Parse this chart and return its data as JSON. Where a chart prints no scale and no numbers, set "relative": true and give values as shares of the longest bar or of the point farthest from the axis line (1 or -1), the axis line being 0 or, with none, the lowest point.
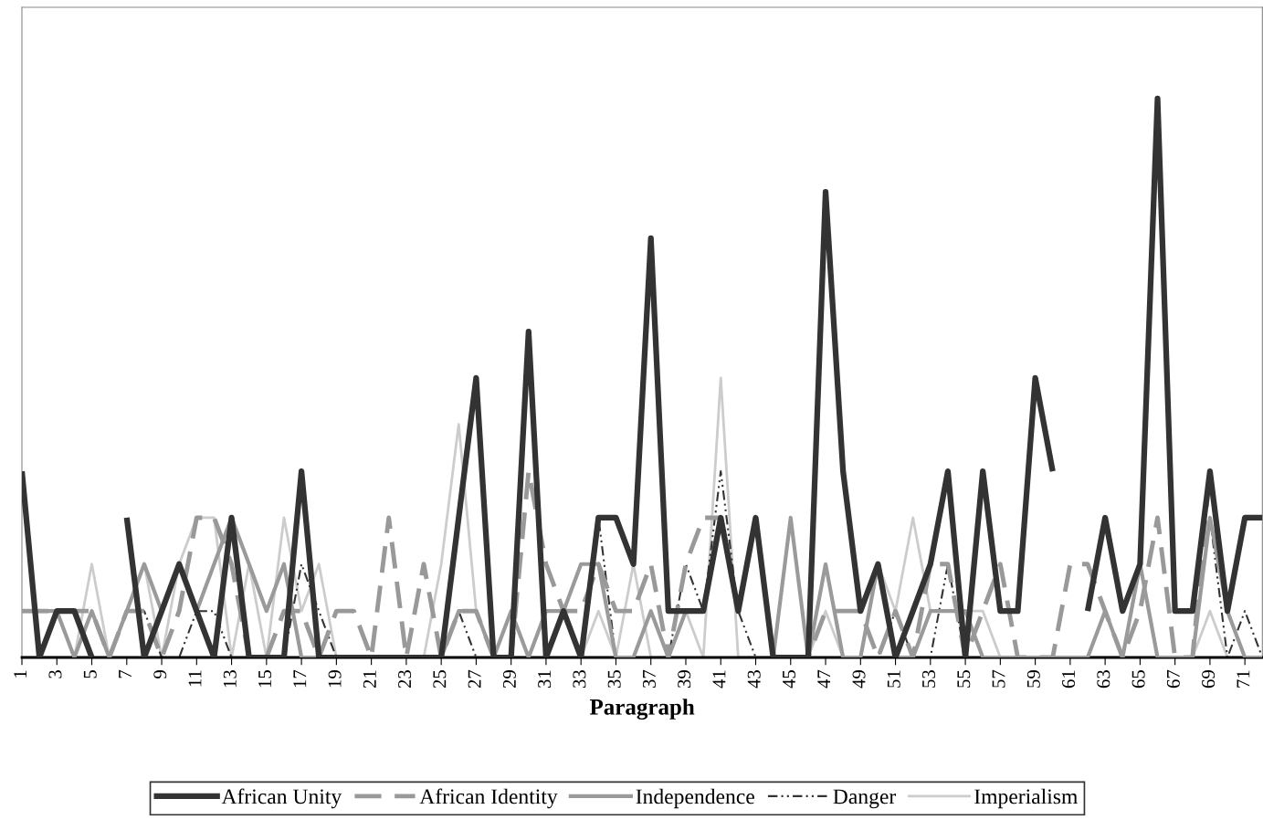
{
  "chart_data": {
    "type": "line",
    "relative": true,
    "xlabel": "Paragraph",
    "categories": [
      "1",
      null,
      "3",
      null,
      "5",
      null,
      "7",
      null,
      "9",
      null,
      "11",
      null,
      "13",
      null,
      "15",
      null,
      "17",
      null,
      "19",
      null,
      "21",
      null,
      "23",
      null,
      "25",
      null,
      "27",
      null,
      "29",
      null,
      "31",
      null,
      "33",
      null,
      "35",
      null,
      "37",
      null,
      "39",
      null,
      "41",
      null,
      "43",
      null,
      "45",
      null,
      "47",
      null,
      "49",
      null,
      "51",
      null,
      "53",
      null,
      "55",
      null,
      "57",
      null,
      "59",
      null,
      "61",
      null,
      "63",
      null,
      "65",
      null,
      "67",
      null,
      "69",
      null,
      "71",
      null
    ],
    "series": [
      {
        "name": "African Unity",
        "color": "#333333",
        "line_style": "solid",
        "values": [
          0.333,
          0,
          0.083,
          0.083,
          0,
          null,
          0.25,
          0,
          0.083,
          0.167,
          0.083,
          0,
          0.25,
          0,
          0,
          0,
          0.333,
          0,
          0,
          0,
          0,
          0,
          0,
          0,
          0,
          0.25,
          0.5,
          0,
          0,
          0.583,
          0,
          0.083,
          0,
          0.25,
          0.25,
          0.167,
          0.75,
          0.083,
          0.083,
          0.083,
          0.25,
          0.083,
          0.25,
          0,
          0,
          0,
          0.833,
          0.333,
          0.083,
          0.167,
          0,
          0.083,
          0.167,
          0.333,
          0,
          0.333,
          0.083,
          0.083,
          0.5,
          0.333,
          null,
          0.083,
          0.25,
          0.083,
          0.167,
          1,
          0.083,
          0.083,
          0.333,
          0.083,
          0.25,
          0.25
        ]
      },
      {
        "name": "African Identity",
        "color": "#999999",
        "line_style": "dashed",
        "values": [
          0.083,
          0.083,
          0.083,
          0.083,
          0.083,
          0,
          0.083,
          0.083,
          0,
          0.083,
          0.25,
          0.25,
          0.167,
          0,
          0,
          0.083,
          0.083,
          0,
          0.083,
          0.083,
          0,
          0.25,
          0,
          0.167,
          0,
          0.083,
          0.083,
          0,
          0,
          0.333,
          0.167,
          0.083,
          0.083,
          0.167,
          0.083,
          0.083,
          0.167,
          0,
          0.167,
          0.25,
          0.25,
          0.083,
          0.25,
          0,
          0,
          0,
          0.083,
          0.083,
          0.083,
          0,
          0.083,
          0,
          0.167,
          0.167,
          0,
          0.083,
          0.167,
          0,
          0,
          0,
          0.167,
          0.167,
          0.083,
          0,
          0.083,
          0.25,
          0,
          0,
          0.333,
          0.083,
          0.25,
          0.25
        ]
      },
      {
        "name": "Independence",
        "color": "#9a9a9a",
        "line_style": "solid",
        "values": [
          0.083,
          0.083,
          0.083,
          0,
          0.083,
          0,
          0.083,
          0.167,
          0.083,
          0.167,
          0.083,
          0.167,
          0.25,
          0.167,
          0.083,
          0.167,
          0,
          0,
          0,
          0,
          0,
          0,
          0,
          0,
          0,
          0.083,
          0.083,
          0,
          0.083,
          0,
          0.083,
          0.083,
          0.167,
          0.167,
          0,
          0,
          0.083,
          0,
          0.083,
          0.083,
          0.25,
          0.083,
          0.25,
          0,
          0.25,
          0,
          0.167,
          0,
          0,
          0.167,
          0,
          0,
          0.083,
          0.083,
          0.083,
          0,
          0,
          0,
          0,
          0,
          0,
          0,
          0.083,
          0,
          0.167,
          0,
          0,
          0,
          0.25,
          0.083,
          0,
          0
        ]
      },
      {
        "name": "Danger",
        "color": "#333333",
        "line_style": "dashdot",
        "values": [
          0,
          0,
          0,
          0,
          0,
          0,
          0.083,
          0.083,
          0,
          0,
          0.083,
          0.083,
          0,
          0,
          0,
          0,
          0.167,
          0.083,
          0,
          0,
          0,
          0,
          0,
          0,
          0,
          0.083,
          0,
          0,
          0,
          0,
          0,
          0,
          0,
          0.25,
          0,
          0,
          0,
          0,
          0.167,
          0.083,
          0.333,
          0.083,
          0,
          0,
          0,
          0,
          0,
          0,
          0,
          0,
          0.083,
          0,
          0,
          0.167,
          0,
          0,
          0,
          0,
          0,
          0,
          0,
          0,
          0,
          0,
          0,
          0,
          0,
          0,
          0.25,
          0,
          0.083,
          0
        ]
      },
      {
        "name": "Imperialism",
        "color": "#cccccc",
        "line_style": "solid",
        "values": [
          0,
          0,
          0,
          0,
          0.167,
          0,
          0.083,
          0.167,
          0,
          0.167,
          0.25,
          0.25,
          0,
          0.167,
          0,
          0.25,
          0.083,
          0.167,
          0,
          0,
          0,
          0,
          0,
          0,
          0.167,
          0.417,
          0.083,
          0,
          0,
          0,
          0.083,
          0.083,
          0,
          0.083,
          0,
          0.167,
          0,
          0,
          0.083,
          0,
          0.5,
          0,
          0,
          0,
          0,
          0,
          0.083,
          0,
          0,
          0.167,
          0.083,
          0.25,
          0.083,
          0.083,
          0.083,
          0.083,
          0,
          0,
          0,
          0,
          0,
          0,
          0,
          0,
          0.167,
          0,
          0,
          0,
          0.083,
          0,
          0,
          0
        ]
      }
    ],
    "legend": "bottom",
    "grid": false,
    "marker": "none"
  }
}
